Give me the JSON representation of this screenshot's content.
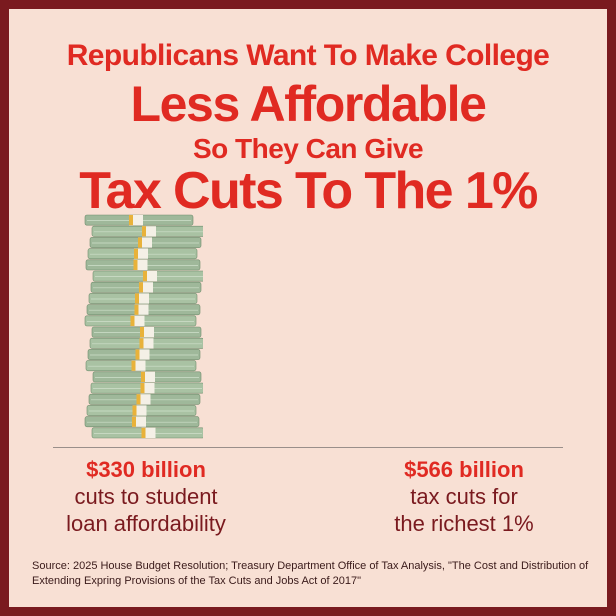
{
  "headline": {
    "line1": "Republicans Want To Make College",
    "line2": "Less Affordable",
    "line3": "So They Can Give",
    "line4": "Tax Cuts To The 1%"
  },
  "left_stat": {
    "amount": "$330 billion",
    "line1": "cuts to student",
    "line2": "loan affordability"
  },
  "right_stat": {
    "amount": "$566 billion",
    "line1": "tax cuts for",
    "line2": "the richest 1%"
  },
  "source": "Source: 2025 House Budget Resolution; Treasury Department Office of Tax Analysis, \"The Cost and Distribution of Extending Expring Provisions of the Tax Cuts and Jobs Act of 2017\"",
  "colors": {
    "accent_red": "#e02a22",
    "border_maroon": "#7a1a1f",
    "background": "#f8e0d4",
    "money_green": "#9fb89a",
    "band_yellow": "#e8b23a"
  },
  "icons": [
    "money-stack-icon"
  ]
}
